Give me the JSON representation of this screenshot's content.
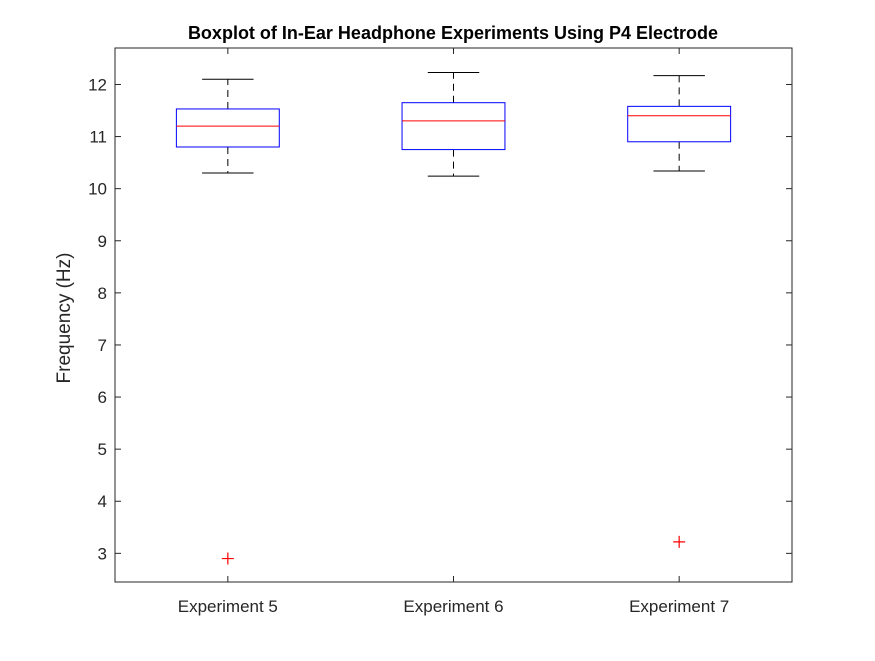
{
  "chart_data": {
    "type": "boxplot",
    "title": "Boxplot of In-Ear Headphone Experiments Using P4 Electrode",
    "xlabel": "",
    "ylabel": "Frequency (Hz)",
    "ylim": [
      2.45,
      12.7
    ],
    "yticks": [
      3,
      4,
      5,
      6,
      7,
      8,
      9,
      10,
      11,
      12
    ],
    "categories": [
      "Experiment 5",
      "Experiment 6",
      "Experiment 7"
    ],
    "boxes": [
      {
        "category": "Experiment 5",
        "lower_whisker": 10.3,
        "q1": 10.8,
        "median": 11.2,
        "q3": 11.53,
        "upper_whisker": 12.1,
        "outliers": [
          2.9
        ]
      },
      {
        "category": "Experiment 6",
        "lower_whisker": 10.24,
        "q1": 10.75,
        "median": 11.3,
        "q3": 11.65,
        "upper_whisker": 12.23,
        "outliers": []
      },
      {
        "category": "Experiment 7",
        "lower_whisker": 10.34,
        "q1": 10.9,
        "median": 11.4,
        "q3": 11.58,
        "upper_whisker": 12.17,
        "outliers": [
          3.22
        ]
      }
    ],
    "grid": false,
    "colors": {
      "box": "#0000ff",
      "median": "#ff0000",
      "whisker": "#000000",
      "outlier": "#ff0000",
      "axis": "#262626",
      "text": "#262626"
    }
  }
}
